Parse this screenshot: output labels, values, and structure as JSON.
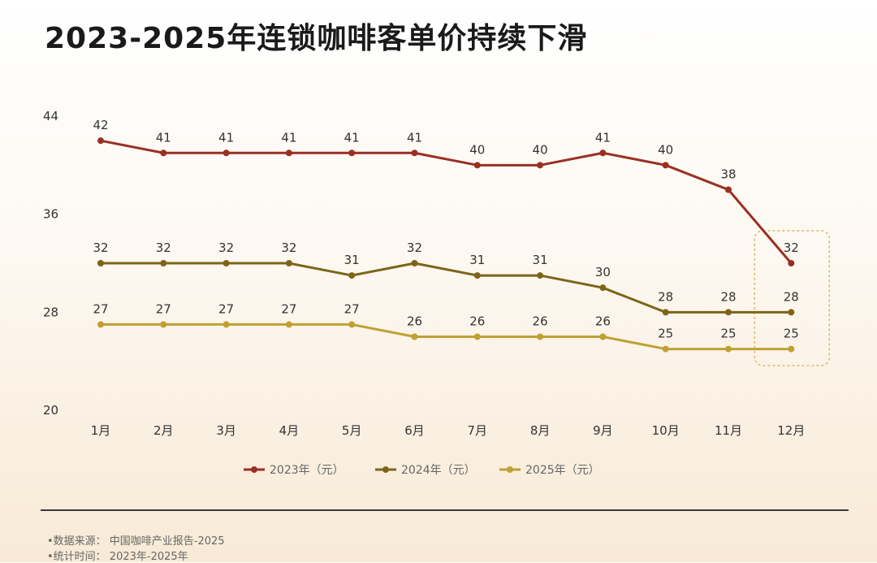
{
  "title": "2023-2025年连锁咖啡客单价持续下滑",
  "chart_data": {
    "type": "line",
    "categories": [
      "1月",
      "2月",
      "3月",
      "4月",
      "5月",
      "6月",
      "7月",
      "8月",
      "9月",
      "10月",
      "11月",
      "12月"
    ],
    "yticks": [
      20,
      28,
      36,
      44
    ],
    "ylim": [
      20,
      44
    ],
    "grid": false,
    "legend_position": "bottom",
    "series": [
      {
        "name": "2023年（元）",
        "color": "#9b2f22",
        "values": [
          42,
          41,
          41,
          41,
          41,
          41,
          40,
          40,
          41,
          40,
          38,
          32
        ]
      },
      {
        "name": "2024年（元）",
        "color": "#7d6418",
        "values": [
          32,
          32,
          32,
          32,
          31,
          32,
          31,
          31,
          30,
          28,
          28,
          28
        ]
      },
      {
        "name": "2025年（元）",
        "color": "#c0a033",
        "values": [
          27,
          27,
          27,
          27,
          27,
          26,
          26,
          26,
          26,
          25,
          25,
          25
        ]
      }
    ],
    "highlight_category": "12月",
    "highlight_color": "#d8b96a"
  },
  "footnotes": {
    "source": "•数据来源：  中国咖啡产业报告-2025",
    "period": "•统计时间：  2023年-2025年"
  }
}
